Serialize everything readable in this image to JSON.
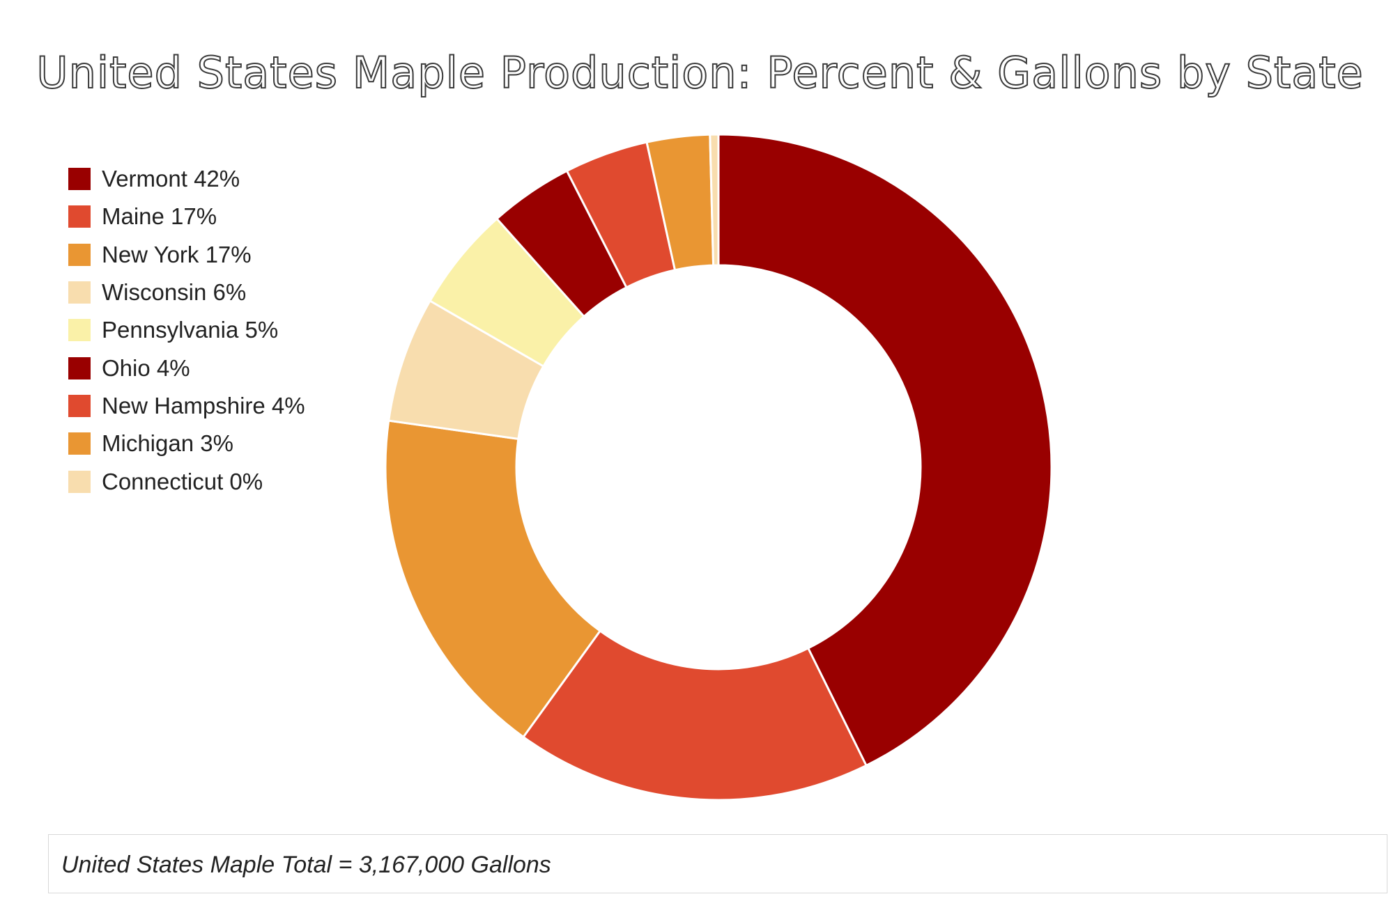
{
  "chart_data": {
    "type": "donut",
    "title": "United States Maple Production: Percent & Gallons by State",
    "legend_position": "left",
    "series": [
      {
        "name": "Vermont",
        "value": 42,
        "label": "Vermont 42%",
        "color": "#990000"
      },
      {
        "name": "Maine",
        "value": 17,
        "label": "Maine 17%",
        "color": "#e04a2f"
      },
      {
        "name": "New York",
        "value": 17,
        "label": "New York 17%",
        "color": "#e99633"
      },
      {
        "name": "Wisconsin",
        "value": 6,
        "label": "Wisconsin 6%",
        "color": "#f8ddae"
      },
      {
        "name": "Pennsylvania",
        "value": 5,
        "label": "Pennsylvania 5%",
        "color": "#faf1a8"
      },
      {
        "name": "Ohio",
        "value": 4,
        "label": "Ohio 4%",
        "color": "#990000"
      },
      {
        "name": "New Hampshire",
        "value": 4,
        "label": "New Hampshire 4%",
        "color": "#e04a2f"
      },
      {
        "name": "Michigan",
        "value": 3,
        "label": "Michigan 3%",
        "color": "#e99633"
      },
      {
        "name": "Connecticut",
        "value": 0.4,
        "label": "Connecticut 0%",
        "color": "#f8ddae"
      }
    ]
  },
  "footer": {
    "total_text": "United States Maple Total = 3,167,000 Gallons"
  }
}
